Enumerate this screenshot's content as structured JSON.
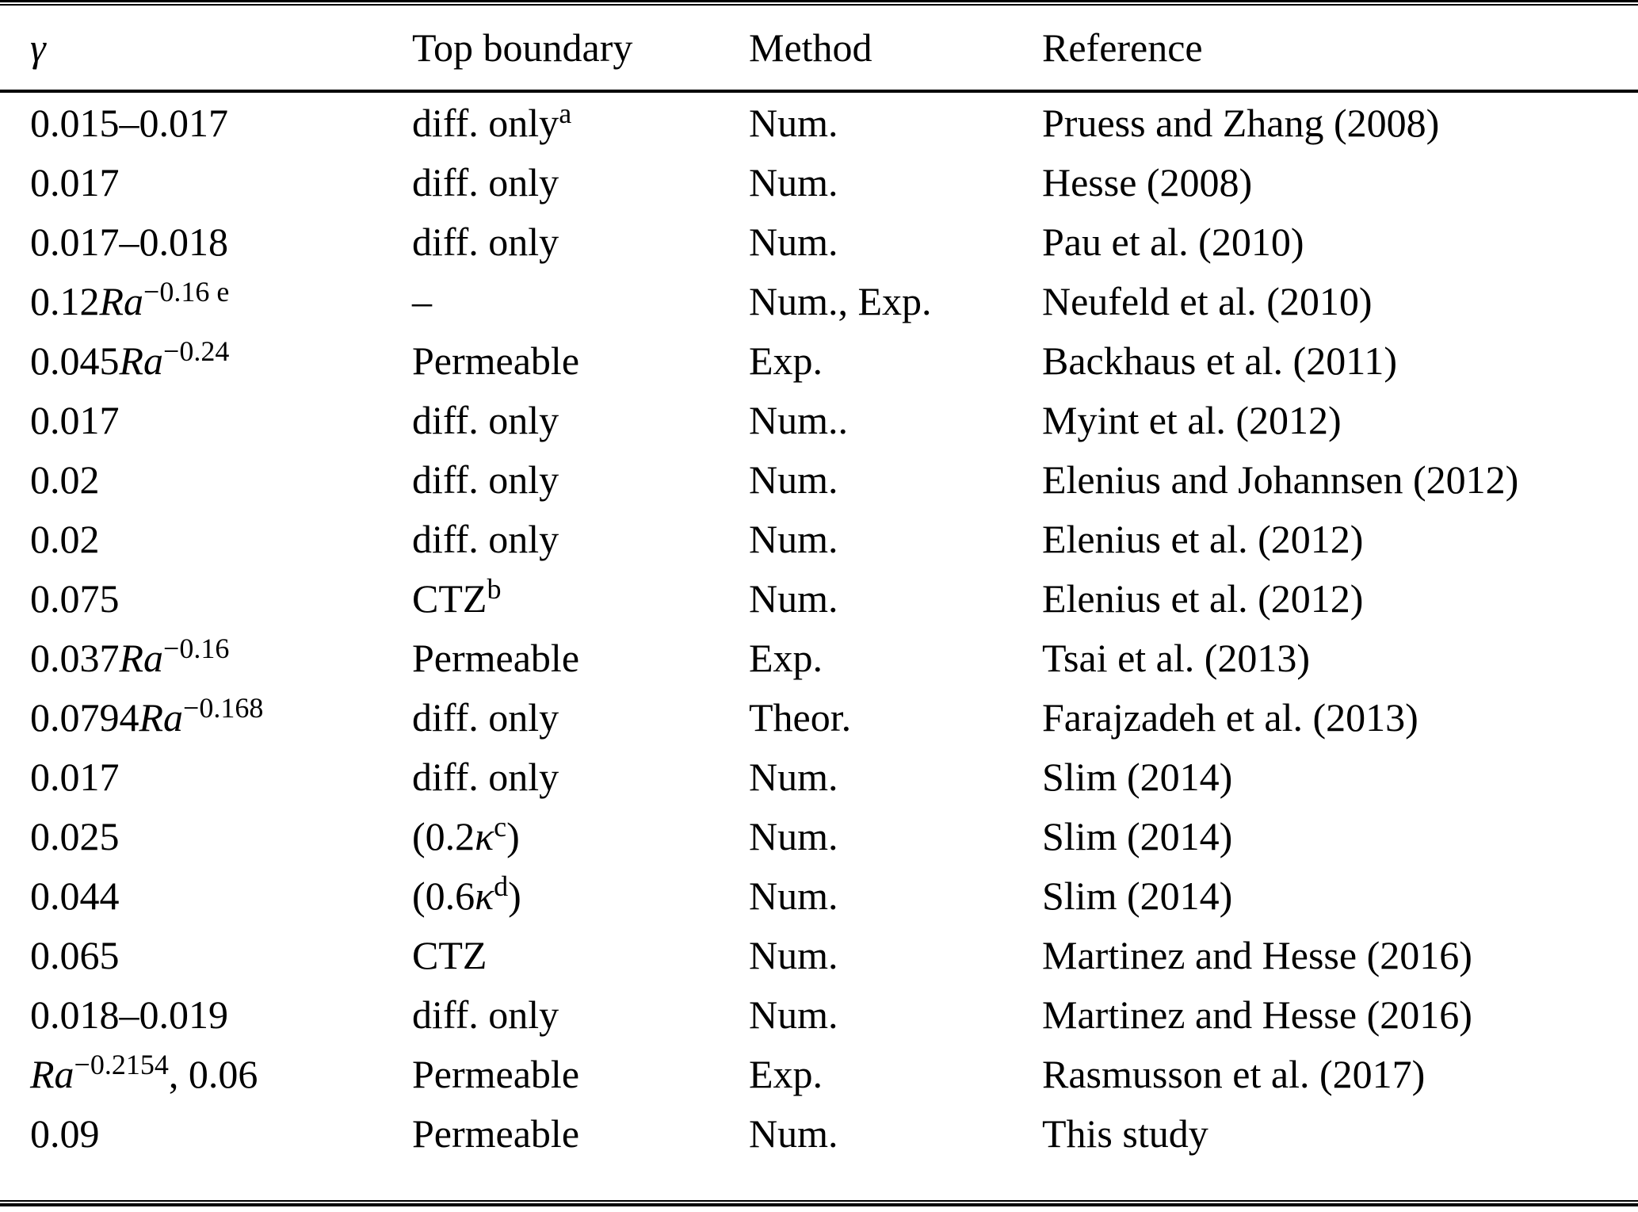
{
  "styles": {
    "background": "#ffffff",
    "text_color": "#000000",
    "rule_color": "#000000"
  },
  "table": {
    "columns": [
      {
        "key": "gamma",
        "label_segments": [
          {
            "t": "γ",
            "i": true
          }
        ]
      },
      {
        "key": "top_boundary",
        "label_segments": [
          {
            "t": "Top boundary"
          }
        ]
      },
      {
        "key": "method",
        "label_segments": [
          {
            "t": "Method"
          }
        ]
      },
      {
        "key": "reference",
        "label_segments": [
          {
            "t": "Reference"
          }
        ]
      }
    ],
    "rows": [
      {
        "gamma": [
          {
            "t": "0.015–0.017"
          }
        ],
        "top_boundary": [
          {
            "t": "diff. only"
          },
          {
            "t": "a",
            "sup": true
          }
        ],
        "method": [
          {
            "t": "Num."
          }
        ],
        "reference": [
          {
            "t": "Pruess and Zhang (2008)"
          }
        ]
      },
      {
        "gamma": [
          {
            "t": "0.017"
          }
        ],
        "top_boundary": [
          {
            "t": "diff. only"
          }
        ],
        "method": [
          {
            "t": "Num."
          }
        ],
        "reference": [
          {
            "t": "Hesse (2008)"
          }
        ]
      },
      {
        "gamma": [
          {
            "t": "0.017–0.018"
          }
        ],
        "top_boundary": [
          {
            "t": "diff. only"
          }
        ],
        "method": [
          {
            "t": "Num."
          }
        ],
        "reference": [
          {
            "t": "Pau et al. (2010)"
          }
        ]
      },
      {
        "gamma": [
          {
            "t": "0.12"
          },
          {
            "t": "Ra",
            "i": true
          },
          {
            "t": "−0.16 e",
            "sup": true
          }
        ],
        "top_boundary": [
          {
            "t": "–"
          }
        ],
        "method": [
          {
            "t": "Num., Exp."
          }
        ],
        "reference": [
          {
            "t": "Neufeld et al. (2010)"
          }
        ]
      },
      {
        "gamma": [
          {
            "t": "0.045"
          },
          {
            "t": "Ra",
            "i": true
          },
          {
            "t": "−0.24",
            "sup": true
          }
        ],
        "top_boundary": [
          {
            "t": "Permeable"
          }
        ],
        "method": [
          {
            "t": "Exp."
          }
        ],
        "reference": [
          {
            "t": "Backhaus et al. (2011)"
          }
        ]
      },
      {
        "gamma": [
          {
            "t": "0.017"
          }
        ],
        "top_boundary": [
          {
            "t": "diff. only"
          }
        ],
        "method": [
          {
            "t": "Num.."
          }
        ],
        "reference": [
          {
            "t": "Myint et al. (2012)"
          }
        ]
      },
      {
        "gamma": [
          {
            "t": "0.02"
          }
        ],
        "top_boundary": [
          {
            "t": "diff. only"
          }
        ],
        "method": [
          {
            "t": "Num."
          }
        ],
        "reference": [
          {
            "t": "Elenius and Johannsen (2012)"
          }
        ]
      },
      {
        "gamma": [
          {
            "t": "0.02"
          }
        ],
        "top_boundary": [
          {
            "t": "diff. only"
          }
        ],
        "method": [
          {
            "t": "Num."
          }
        ],
        "reference": [
          {
            "t": "Elenius et al. (2012)"
          }
        ]
      },
      {
        "gamma": [
          {
            "t": "0.075"
          }
        ],
        "top_boundary": [
          {
            "t": "CTZ"
          },
          {
            "t": "b",
            "sup": true
          }
        ],
        "method": [
          {
            "t": "Num."
          }
        ],
        "reference": [
          {
            "t": "Elenius et al. (2012)"
          }
        ]
      },
      {
        "gamma": [
          {
            "t": "0.037"
          },
          {
            "t": "Ra",
            "i": true
          },
          {
            "t": "−0.16",
            "sup": true
          }
        ],
        "top_boundary": [
          {
            "t": "Permeable"
          }
        ],
        "method": [
          {
            "t": "Exp."
          }
        ],
        "reference": [
          {
            "t": "Tsai et al. (2013)"
          }
        ]
      },
      {
        "gamma": [
          {
            "t": "0.0794"
          },
          {
            "t": "Ra",
            "i": true
          },
          {
            "t": "−0.168",
            "sup": true
          }
        ],
        "top_boundary": [
          {
            "t": "diff. only"
          }
        ],
        "method": [
          {
            "t": "Theor."
          }
        ],
        "reference": [
          {
            "t": "Farajzadeh et al. (2013)"
          }
        ]
      },
      {
        "gamma": [
          {
            "t": "0.017"
          }
        ],
        "top_boundary": [
          {
            "t": "diff. only"
          }
        ],
        "method": [
          {
            "t": "Num."
          }
        ],
        "reference": [
          {
            "t": "Slim (2014)"
          }
        ]
      },
      {
        "gamma": [
          {
            "t": "0.025"
          }
        ],
        "top_boundary": [
          {
            "t": "(0.2"
          },
          {
            "t": "κ",
            "i": true
          },
          {
            "t": "c",
            "sup": true
          },
          {
            "t": ")"
          }
        ],
        "method": [
          {
            "t": "Num."
          }
        ],
        "reference": [
          {
            "t": "Slim (2014)"
          }
        ]
      },
      {
        "gamma": [
          {
            "t": "0.044"
          }
        ],
        "top_boundary": [
          {
            "t": "(0.6"
          },
          {
            "t": "κ",
            "i": true
          },
          {
            "t": "d",
            "sup": true
          },
          {
            "t": ")"
          }
        ],
        "method": [
          {
            "t": "Num."
          }
        ],
        "reference": [
          {
            "t": "Slim (2014)"
          }
        ]
      },
      {
        "gamma": [
          {
            "t": "0.065"
          }
        ],
        "top_boundary": [
          {
            "t": "CTZ"
          }
        ],
        "method": [
          {
            "t": "Num."
          }
        ],
        "reference": [
          {
            "t": "Martinez and Hesse (2016)"
          }
        ]
      },
      {
        "gamma": [
          {
            "t": "0.018–0.019"
          }
        ],
        "top_boundary": [
          {
            "t": "diff. only"
          }
        ],
        "method": [
          {
            "t": "Num."
          }
        ],
        "reference": [
          {
            "t": "Martinez and Hesse (2016)"
          }
        ]
      },
      {
        "gamma": [
          {
            "t": "Ra",
            "i": true
          },
          {
            "t": "−0.2154",
            "sup": true
          },
          {
            "t": ", 0.06"
          }
        ],
        "top_boundary": [
          {
            "t": "Permeable"
          }
        ],
        "method": [
          {
            "t": "Exp."
          }
        ],
        "reference": [
          {
            "t": "Rasmusson et al. (2017)"
          }
        ]
      },
      {
        "gamma": [
          {
            "t": "0.09"
          }
        ],
        "top_boundary": [
          {
            "t": "Permeable"
          }
        ],
        "method": [
          {
            "t": "Num."
          }
        ],
        "reference": [
          {
            "t": "This study"
          }
        ]
      }
    ]
  }
}
